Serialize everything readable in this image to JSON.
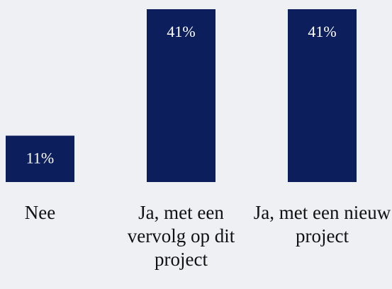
{
  "chart_data": {
    "type": "bar",
    "categories": [
      "Nee",
      "Ja, met een vervolg op dit project",
      "Ja, met een nieuw project"
    ],
    "values": [
      11,
      41,
      41
    ],
    "value_labels": [
      "11%",
      "41%",
      "41%"
    ],
    "color": "#0c1f5c"
  }
}
